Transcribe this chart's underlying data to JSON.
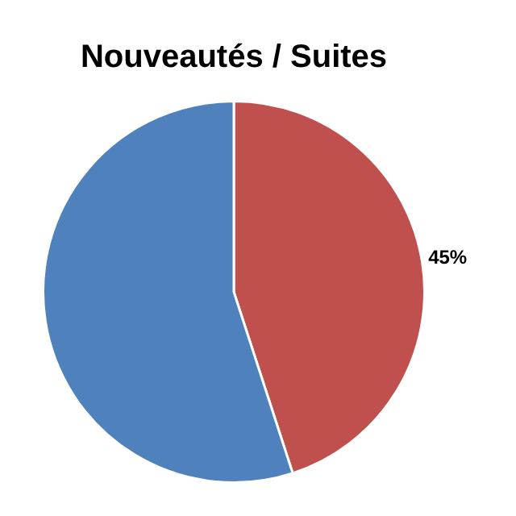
{
  "chart_data": {
    "type": "pie",
    "title": "Nouveautés / Suites",
    "categories": [
      null,
      null
    ],
    "values": [
      45,
      55
    ],
    "colors": [
      "#c0504d",
      "#4f81bd"
    ],
    "value_labels": [
      "45%",
      null
    ],
    "legend": false
  }
}
